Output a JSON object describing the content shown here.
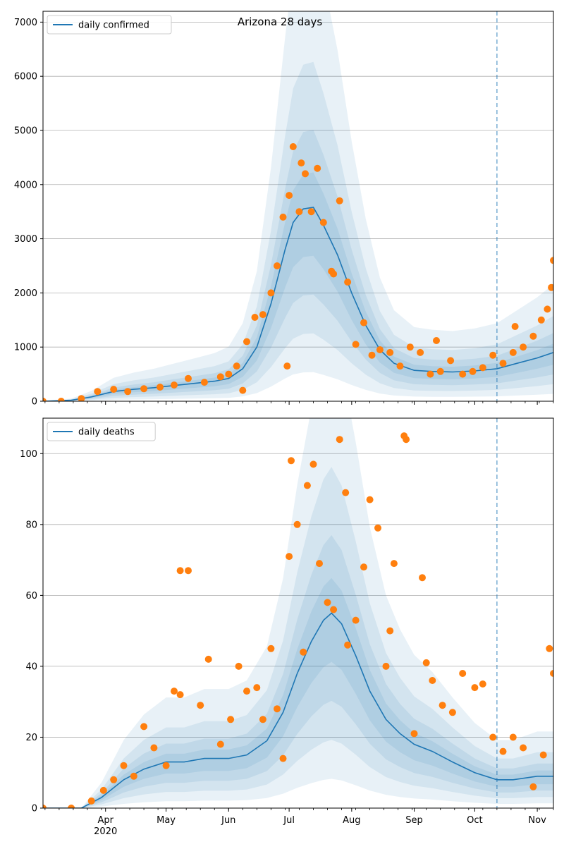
{
  "chart_data": [
    {
      "type": "line",
      "title": "Arizona 28 days",
      "xlabel": "",
      "ylabel": "",
      "x_ticks": [
        "Apr\n2020",
        "May",
        "Jun",
        "Jul",
        "Aug",
        "Sep",
        "Oct",
        "Nov"
      ],
      "x_range": [
        "2020-03-01",
        "2020-11-09"
      ],
      "ylim": [
        0,
        7200
      ],
      "y_ticks": [
        0,
        1000,
        2000,
        3000,
        4000,
        5000,
        6000,
        7000
      ],
      "grid": "horizontal",
      "legend": {
        "position": "top-left",
        "entries": [
          "daily confirmed"
        ]
      },
      "forecast_start": "2020-10-12",
      "series": [
        {
          "name": "daily confirmed",
          "kind": "model line",
          "color": "#1f77b4",
          "x": [
            "2020-03-01",
            "2020-03-15",
            "2020-03-25",
            "2020-04-05",
            "2020-04-15",
            "2020-04-25",
            "2020-05-05",
            "2020-05-15",
            "2020-05-25",
            "2020-06-01",
            "2020-06-08",
            "2020-06-15",
            "2020-06-22",
            "2020-06-29",
            "2020-07-03",
            "2020-07-08",
            "2020-07-13",
            "2020-07-18",
            "2020-07-25",
            "2020-08-01",
            "2020-08-08",
            "2020-08-15",
            "2020-08-22",
            "2020-09-01",
            "2020-09-10",
            "2020-09-20",
            "2020-10-01",
            "2020-10-12",
            "2020-10-22",
            "2020-11-01",
            "2020-11-09"
          ],
          "y": [
            0,
            20,
            80,
            180,
            220,
            250,
            290,
            330,
            370,
            420,
            600,
            1000,
            1800,
            2800,
            3300,
            3550,
            3580,
            3250,
            2700,
            2000,
            1400,
            950,
            700,
            570,
            550,
            540,
            560,
            600,
            700,
            800,
            900
          ]
        },
        {
          "name": "observed",
          "kind": "scatter",
          "color": "#ff7f0e",
          "x": [
            "2020-03-01",
            "2020-03-10",
            "2020-03-20",
            "2020-03-28",
            "2020-04-05",
            "2020-04-12",
            "2020-04-20",
            "2020-04-28",
            "2020-05-05",
            "2020-05-12",
            "2020-05-20",
            "2020-05-28",
            "2020-06-01",
            "2020-06-05",
            "2020-06-10",
            "2020-06-14",
            "2020-06-18",
            "2020-06-22",
            "2020-06-25",
            "2020-06-28",
            "2020-07-01",
            "2020-07-03",
            "2020-07-06",
            "2020-07-09",
            "2020-07-12",
            "2020-07-15",
            "2020-07-18",
            "2020-07-22",
            "2020-07-26",
            "2020-07-30",
            "2020-08-03",
            "2020-08-07",
            "2020-08-11",
            "2020-08-15",
            "2020-08-20",
            "2020-08-25",
            "2020-08-30",
            "2020-09-04",
            "2020-09-09",
            "2020-09-14",
            "2020-09-19",
            "2020-09-25",
            "2020-09-30",
            "2020-10-05",
            "2020-10-10",
            "2020-10-15",
            "2020-10-20",
            "2020-10-25",
            "2020-10-30",
            "2020-11-03",
            "2020-11-06",
            "2020-11-09",
            "2020-06-30",
            "2020-07-07",
            "2020-07-23",
            "2020-06-08",
            "2020-09-12",
            "2020-10-21",
            "2020-11-08"
          ],
          "y": [
            0,
            0,
            50,
            180,
            220,
            180,
            230,
            260,
            300,
            420,
            350,
            450,
            500,
            650,
            1100,
            1550,
            1600,
            2000,
            2500,
            3400,
            3800,
            4700,
            3500,
            4200,
            3500,
            4300,
            3300,
            2400,
            3700,
            2200,
            1050,
            1450,
            850,
            950,
            900,
            650,
            1000,
            900,
            500,
            550,
            750,
            500,
            550,
            620,
            850,
            700,
            900,
            1000,
            1200,
            1500,
            1700,
            2600,
            650,
            4400,
            2350,
            200,
            1120,
            1380,
            2100
          ]
        }
      ],
      "confidence_bands": 4
    },
    {
      "type": "line",
      "title": "",
      "xlabel": "",
      "ylabel": "",
      "x_ticks": [
        "Apr\n2020",
        "May",
        "Jun",
        "Jul",
        "Aug",
        "Sep",
        "Oct",
        "Nov"
      ],
      "x_range": [
        "2020-03-01",
        "2020-11-09"
      ],
      "ylim": [
        0,
        110
      ],
      "y_ticks": [
        0,
        20,
        40,
        60,
        80,
        100
      ],
      "grid": "horizontal",
      "legend": {
        "position": "top-left",
        "entries": [
          "daily deaths"
        ]
      },
      "forecast_start": "2020-10-12",
      "series": [
        {
          "name": "daily deaths",
          "kind": "model line",
          "color": "#1f77b4",
          "x": [
            "2020-03-01",
            "2020-03-20",
            "2020-03-30",
            "2020-04-10",
            "2020-04-20",
            "2020-05-01",
            "2020-05-10",
            "2020-05-20",
            "2020-06-01",
            "2020-06-10",
            "2020-06-20",
            "2020-06-28",
            "2020-07-05",
            "2020-07-12",
            "2020-07-18",
            "2020-07-22",
            "2020-07-27",
            "2020-08-03",
            "2020-08-10",
            "2020-08-18",
            "2020-08-25",
            "2020-09-01",
            "2020-09-10",
            "2020-09-20",
            "2020-10-01",
            "2020-10-12",
            "2020-10-20",
            "2020-11-01",
            "2020-11-09"
          ],
          "y": [
            0,
            0,
            3,
            8,
            11,
            13,
            13,
            14,
            14,
            15,
            19,
            27,
            38,
            47,
            53,
            55,
            52,
            43,
            33,
            25,
            21,
            18,
            16,
            13,
            10,
            8,
            8,
            9,
            9
          ]
        },
        {
          "name": "observed",
          "kind": "scatter",
          "color": "#ff7f0e",
          "x": [
            "2020-03-01",
            "2020-03-15",
            "2020-03-25",
            "2020-03-31",
            "2020-04-05",
            "2020-04-10",
            "2020-04-15",
            "2020-04-20",
            "2020-04-25",
            "2020-05-01",
            "2020-05-05",
            "2020-05-08",
            "2020-05-12",
            "2020-05-18",
            "2020-05-22",
            "2020-05-28",
            "2020-06-02",
            "2020-06-06",
            "2020-06-10",
            "2020-06-15",
            "2020-06-18",
            "2020-06-22",
            "2020-06-25",
            "2020-06-28",
            "2020-07-02",
            "2020-07-05",
            "2020-07-08",
            "2020-07-10",
            "2020-07-13",
            "2020-07-16",
            "2020-07-20",
            "2020-07-23",
            "2020-07-26",
            "2020-07-30",
            "2020-08-03",
            "2020-08-07",
            "2020-08-10",
            "2020-08-14",
            "2020-08-18",
            "2020-08-22",
            "2020-08-27",
            "2020-09-01",
            "2020-09-05",
            "2020-09-10",
            "2020-09-15",
            "2020-09-20",
            "2020-09-25",
            "2020-10-01",
            "2020-10-05",
            "2020-10-10",
            "2020-10-15",
            "2020-10-20",
            "2020-10-25",
            "2020-10-30",
            "2020-11-04",
            "2020-11-07",
            "2020-11-09",
            "2020-05-08",
            "2020-07-01",
            "2020-07-29",
            "2020-08-20",
            "2020-08-28",
            "2020-09-07"
          ],
          "y": [
            0,
            0,
            2,
            5,
            8,
            12,
            9,
            23,
            17,
            12,
            33,
            32,
            67,
            29,
            42,
            18,
            25,
            40,
            33,
            34,
            25,
            45,
            28,
            14,
            98,
            80,
            44,
            91,
            97,
            69,
            58,
            56,
            104,
            46,
            53,
            68,
            87,
            79,
            40,
            69,
            105,
            21,
            65,
            36,
            29,
            27,
            38,
            34,
            35,
            20,
            16,
            20,
            17,
            6,
            15,
            45,
            38,
            67,
            71,
            89,
            50,
            104,
            41
          ]
        }
      ],
      "confidence_bands": 4
    }
  ]
}
